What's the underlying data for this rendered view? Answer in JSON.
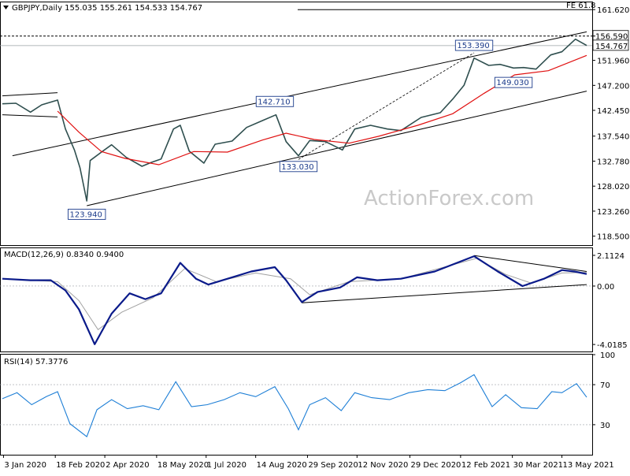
{
  "chart_data": {
    "type": "line",
    "symbol": "GBPJPY",
    "timeframe": "Daily",
    "header_text": "GBPJPY,Daily  155.035 155.261 154.533 154.767",
    "ohlc": {
      "open": 155.035,
      "high": 155.261,
      "low": 154.533,
      "close": 154.767
    },
    "watermark": "ActionForex.com",
    "x_ticks": [
      "3 Jan 2020",
      "18 Feb 2020",
      "2 Apr 2020",
      "18 May 2020",
      "1 Jul 2020",
      "14 Aug 2020",
      "29 Sep 2020",
      "12 Nov 2020",
      "29 Dec 2020",
      "12 Feb 2021",
      "30 Mar 2021",
      "13 May 2021"
    ],
    "price_panel": {
      "ylim": [
        116.8,
        163.0
      ],
      "y_ticks": [
        "161.620",
        "156.590",
        "151.960",
        "147.200",
        "142.450",
        "137.540",
        "132.780",
        "128.020",
        "123.260",
        "118.500"
      ],
      "y_tick_values": [
        161.62,
        156.59,
        151.96,
        147.2,
        142.45,
        137.54,
        132.78,
        128.02,
        123.26,
        118.5
      ],
      "current_price_label": "154.767",
      "current_price": 154.767,
      "level_label": "156.590",
      "level": 156.59,
      "fe_label": "FE 61.8",
      "fe_level": 161.62,
      "annotations": [
        {
          "text": "123.940",
          "value": 123.94,
          "date": "2020-03-17"
        },
        {
          "text": "142.710",
          "value": 142.71,
          "date": "2020-08-31"
        },
        {
          "text": "133.030",
          "value": 133.03,
          "date": "2020-09-21"
        },
        {
          "text": "153.390",
          "value": 153.39,
          "date": "2021-02-24"
        },
        {
          "text": "149.030",
          "value": 149.03,
          "date": "2021-03-31"
        }
      ],
      "price_series": [
        [
          "2020-01-02",
          143.7
        ],
        [
          "2020-01-14",
          143.8
        ],
        [
          "2020-01-27",
          142.1
        ],
        [
          "2020-02-06",
          143.5
        ],
        [
          "2020-02-20",
          144.4
        ],
        [
          "2020-02-27",
          138.9
        ],
        [
          "2020-03-06",
          134.9
        ],
        [
          "2020-03-11",
          131.5
        ],
        [
          "2020-03-17",
          125.2
        ],
        [
          "2020-03-20",
          132.9
        ],
        [
          "2020-03-30",
          134.5
        ],
        [
          "2020-04-08",
          135.9
        ],
        [
          "2020-04-21",
          133.5
        ],
        [
          "2020-05-05",
          131.8
        ],
        [
          "2020-05-13",
          132.5
        ],
        [
          "2020-05-22",
          133.2
        ],
        [
          "2020-06-02",
          138.9
        ],
        [
          "2020-06-08",
          139.6
        ],
        [
          "2020-06-16",
          134.7
        ],
        [
          "2020-06-29",
          132.4
        ],
        [
          "2020-07-09",
          136.0
        ],
        [
          "2020-07-24",
          136.6
        ],
        [
          "2020-08-06",
          139.2
        ],
        [
          "2020-08-20",
          140.5
        ],
        [
          "2020-09-01",
          141.6
        ],
        [
          "2020-09-10",
          136.5
        ],
        [
          "2020-09-21",
          133.8
        ],
        [
          "2020-10-01",
          136.7
        ],
        [
          "2020-10-15",
          136.5
        ],
        [
          "2020-10-30",
          134.9
        ],
        [
          "2020-11-10",
          138.9
        ],
        [
          "2020-11-24",
          139.6
        ],
        [
          "2020-12-09",
          138.9
        ],
        [
          "2020-12-21",
          138.6
        ],
        [
          "2021-01-08",
          141.1
        ],
        [
          "2021-01-25",
          142.0
        ],
        [
          "2021-02-05",
          144.6
        ],
        [
          "2021-02-15",
          147.2
        ],
        [
          "2021-02-24",
          152.4
        ],
        [
          "2021-03-09",
          151.0
        ],
        [
          "2021-03-19",
          151.2
        ],
        [
          "2021-03-31",
          150.5
        ],
        [
          "2021-04-09",
          150.6
        ],
        [
          "2021-04-20",
          150.3
        ],
        [
          "2021-05-03",
          153.0
        ],
        [
          "2021-05-13",
          153.6
        ],
        [
          "2021-05-25",
          156.0
        ],
        [
          "2021-06-04",
          154.8
        ]
      ],
      "sma_series": [
        [
          "2020-02-20",
          142.3
        ],
        [
          "2020-03-10",
          138.3
        ],
        [
          "2020-03-30",
          134.6
        ],
        [
          "2020-04-20",
          133.3
        ],
        [
          "2020-05-20",
          132.1
        ],
        [
          "2020-06-20",
          134.6
        ],
        [
          "2020-07-20",
          134.5
        ],
        [
          "2020-08-20",
          136.8
        ],
        [
          "2020-09-10",
          138.1
        ],
        [
          "2020-10-05",
          136.9
        ],
        [
          "2020-11-05",
          136.2
        ],
        [
          "2020-12-01",
          137.5
        ],
        [
          "2021-01-05",
          139.6
        ],
        [
          "2021-02-05",
          141.8
        ],
        [
          "2021-03-05",
          145.7
        ],
        [
          "2021-04-01",
          149.2
        ],
        [
          "2021-05-01",
          150.0
        ],
        [
          "2021-06-04",
          152.9
        ]
      ],
      "trend_lines": [
        {
          "from": [
            "2020-01-02",
            145.2
          ],
          "to": [
            "2020-02-20",
            145.8
          ]
        },
        {
          "from": [
            "2020-01-02",
            141.6
          ],
          "to": [
            "2020-02-20",
            141.2
          ]
        },
        {
          "from": [
            "2020-01-11",
            133.8
          ],
          "to": [
            "2021-06-04",
            157.4
          ]
        },
        {
          "from": [
            "2020-03-17",
            124.3
          ],
          "to": [
            "2021-06-04",
            146.1
          ]
        },
        {
          "from": [
            "2020-09-21",
            133.1
          ],
          "to": [
            "2021-02-24",
            153.4
          ]
        }
      ]
    },
    "macd_panel": {
      "label": "MACD(12,26,9) 0.8340 0.9400",
      "ylim": [
        -4.5,
        2.6
      ],
      "y_ticks": [
        "2.1124",
        "0.00",
        "-4.0185"
      ],
      "y_tick_values": [
        2.1124,
        0.0,
        -4.0185
      ],
      "macd_series": [
        [
          "2020-01-02",
          0.5
        ],
        [
          "2020-01-27",
          0.4
        ],
        [
          "2020-02-14",
          0.4
        ],
        [
          "2020-02-27",
          -0.3
        ],
        [
          "2020-03-10",
          -1.6
        ],
        [
          "2020-03-24",
          -4.0
        ],
        [
          "2020-04-08",
          -1.9
        ],
        [
          "2020-04-24",
          -0.5
        ],
        [
          "2020-05-08",
          -0.9
        ],
        [
          "2020-05-22",
          -0.5
        ],
        [
          "2020-06-08",
          1.6
        ],
        [
          "2020-06-22",
          0.5
        ],
        [
          "2020-07-03",
          0.1
        ],
        [
          "2020-07-24",
          0.6
        ],
        [
          "2020-08-10",
          1.0
        ],
        [
          "2020-08-31",
          1.3
        ],
        [
          "2020-09-10",
          0.4
        ],
        [
          "2020-09-24",
          -1.1
        ],
        [
          "2020-10-08",
          -0.4
        ],
        [
          "2020-10-28",
          -0.1
        ],
        [
          "2020-11-12",
          0.6
        ],
        [
          "2020-11-30",
          0.4
        ],
        [
          "2020-12-21",
          0.5
        ],
        [
          "2021-01-20",
          1.0
        ],
        [
          "2021-02-24",
          2.05
        ],
        [
          "2021-03-17",
          1.0
        ],
        [
          "2021-04-08",
          0.0
        ],
        [
          "2021-04-27",
          0.5
        ],
        [
          "2021-05-13",
          1.1
        ],
        [
          "2021-05-24",
          1.0
        ],
        [
          "2021-06-04",
          0.83
        ]
      ],
      "signal_series": [
        [
          "2020-01-02",
          0.5
        ],
        [
          "2020-02-20",
          0.3
        ],
        [
          "2020-03-10",
          -1.0
        ],
        [
          "2020-03-27",
          -3.0
        ],
        [
          "2020-04-17",
          -1.8
        ],
        [
          "2020-05-15",
          -0.8
        ],
        [
          "2020-06-12",
          1.2
        ],
        [
          "2020-07-10",
          0.3
        ],
        [
          "2020-08-14",
          0.9
        ],
        [
          "2020-09-14",
          0.5
        ],
        [
          "2020-10-01",
          -0.6
        ],
        [
          "2020-11-05",
          0.3
        ],
        [
          "2020-12-21",
          0.5
        ],
        [
          "2021-02-26",
          1.9
        ],
        [
          "2021-03-24",
          0.8
        ],
        [
          "2021-04-16",
          0.2
        ],
        [
          "2021-05-13",
          0.9
        ],
        [
          "2021-06-04",
          0.94
        ]
      ],
      "trend_lines": [
        {
          "from": [
            "2020-09-24",
            -1.15
          ],
          "to": [
            "2021-06-04",
            0.1
          ]
        },
        {
          "from": [
            "2021-02-24",
            2.1
          ],
          "to": [
            "2021-06-04",
            1.0
          ]
        }
      ]
    },
    "rsi_panel": {
      "label": "RSI(14) 57.3776",
      "ylim": [
        0,
        100
      ],
      "y_ticks": [
        "100",
        "70",
        "30",
        "0"
      ],
      "y_tick_values": [
        100,
        70,
        30,
        0
      ],
      "rsi_series": [
        [
          "2020-01-02",
          56
        ],
        [
          "2020-01-15",
          62
        ],
        [
          "2020-01-28",
          50
        ],
        [
          "2020-02-10",
          58
        ],
        [
          "2020-02-20",
          63
        ],
        [
          "2020-03-02",
          31
        ],
        [
          "2020-03-17",
          18
        ],
        [
          "2020-03-26",
          45
        ],
        [
          "2020-04-08",
          55
        ],
        [
          "2020-04-22",
          46
        ],
        [
          "2020-05-06",
          49
        ],
        [
          "2020-05-20",
          45
        ],
        [
          "2020-06-04",
          73
        ],
        [
          "2020-06-18",
          48
        ],
        [
          "2020-07-02",
          50
        ],
        [
          "2020-07-17",
          55
        ],
        [
          "2020-07-31",
          62
        ],
        [
          "2020-08-14",
          58
        ],
        [
          "2020-08-31",
          68
        ],
        [
          "2020-09-12",
          46
        ],
        [
          "2020-09-21",
          25
        ],
        [
          "2020-10-01",
          50
        ],
        [
          "2020-10-15",
          57
        ],
        [
          "2020-10-29",
          44
        ],
        [
          "2020-11-10",
          62
        ],
        [
          "2020-11-25",
          57
        ],
        [
          "2020-12-11",
          55
        ],
        [
          "2020-12-28",
          62
        ],
        [
          "2021-01-14",
          65
        ],
        [
          "2021-01-29",
          64
        ],
        [
          "2021-02-12",
          72
        ],
        [
          "2021-02-24",
          80
        ],
        [
          "2021-03-05",
          62
        ],
        [
          "2021-03-12",
          48
        ],
        [
          "2021-03-24",
          60
        ],
        [
          "2021-04-07",
          47
        ],
        [
          "2021-04-21",
          46
        ],
        [
          "2021-05-04",
          63
        ],
        [
          "2021-05-13",
          62
        ],
        [
          "2021-05-26",
          71
        ],
        [
          "2021-06-04",
          57.4
        ]
      ]
    }
  }
}
